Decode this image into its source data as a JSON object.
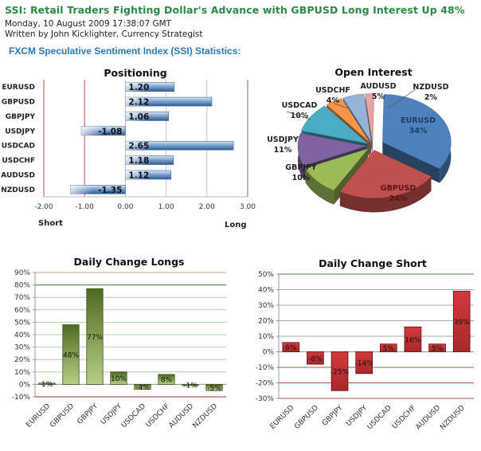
{
  "article": {
    "title": "SSI: Retail Traders Fighting Dollar's Advance with GBPUSD Long Interest Up 48%",
    "date": "Monday, 10 August 2009 17:38:07 GMT",
    "author": "Written by John Kicklighter, Currency Strategist",
    "section_heading": "FXCM Speculative  Sentiment Index (SSI) Statistics:"
  },
  "colors": {
    "title_green": "#2a8a46",
    "heading_blue": "#2a7ab8",
    "bar_blue": "#4f7fb8",
    "bar_green": "#6a8a36",
    "bar_red": "#c8393c",
    "grid_red": "#c0504d",
    "grid_green": "#4a8a3a"
  },
  "chart_data": [
    {
      "type": "bar",
      "orientation": "horizontal",
      "title": "Positioning",
      "categories": [
        "EURUSD",
        "GBPUSD",
        "GBPJPY",
        "USDJPY",
        "USDCAD",
        "USDCHF",
        "AUDUSD",
        "NZDUSD"
      ],
      "values": [
        1.2,
        2.12,
        1.06,
        -1.08,
        2.65,
        1.18,
        1.12,
        -1.35
      ],
      "value_labels": [
        "1.20",
        "2.12",
        "1.06",
        "-1.08",
        "2.65",
        "1.18",
        "1.12",
        "-1.35"
      ],
      "xlim": [
        -2.0,
        3.0
      ],
      "xticks": [
        "-2.00",
        "-1.00",
        "0.00",
        "1.00",
        "2.00",
        "3.00"
      ],
      "xtick_values": [
        -2,
        -1,
        0,
        1,
        2,
        3
      ],
      "annotations": {
        "left": "Short",
        "right": "Long"
      },
      "grid": true
    },
    {
      "type": "pie",
      "title": "Open Interest",
      "three_d": true,
      "slices": [
        {
          "label": "EURUSD",
          "value": 34,
          "pct": "34%",
          "color": "#4f81bd"
        },
        {
          "label": "GBPUSD",
          "value": 24,
          "pct": "24%",
          "color": "#c0504d"
        },
        {
          "label": "GBPJPY",
          "value": 10,
          "pct": "10%",
          "color": "#9bbb59"
        },
        {
          "label": "USDJPY",
          "value": 11,
          "pct": "11%",
          "color": "#8064a2"
        },
        {
          "label": "USDCAD",
          "value": 10,
          "pct": "10%",
          "color": "#4bacc6"
        },
        {
          "label": "USDCHF",
          "value": 4,
          "pct": "4%",
          "color": "#f79646"
        },
        {
          "label": "AUDUSD",
          "value": 5,
          "pct": "5%",
          "color": "#95b3d7"
        },
        {
          "label": "NZDUSD",
          "value": 2,
          "pct": "2%",
          "color": "#e6a5a5"
        }
      ]
    },
    {
      "type": "bar",
      "title": "Daily Change Longs",
      "categories": [
        "EURUSD",
        "GBPUSD",
        "GBPJPY",
        "USDJPY",
        "USDCAD",
        "USDCHF",
        "AUDUSD",
        "NZDUSD"
      ],
      "values": [
        1,
        48,
        77,
        10,
        -4,
        8,
        -1,
        -5
      ],
      "value_labels": [
        "1%",
        "48%",
        "77%",
        "10%",
        "-4%",
        "8%",
        "-1%",
        "-5%"
      ],
      "ylim": [
        -10,
        90
      ],
      "yticks": [
        "-10%",
        "0%",
        "10%",
        "20%",
        "30%",
        "40%",
        "50%",
        "60%",
        "70%",
        "80%",
        "90%"
      ],
      "ytick_values": [
        -10,
        0,
        10,
        20,
        30,
        40,
        50,
        60,
        70,
        80,
        90
      ],
      "grid": true
    },
    {
      "type": "bar",
      "title": "Daily Change Short",
      "categories": [
        "EURUSD",
        "GBPUSD",
        "GBPJPY",
        "USDJPY",
        "USDCAD",
        "USDCHF",
        "AUDUSD",
        "NZDUSD"
      ],
      "values": [
        6,
        -8,
        -25,
        -14,
        5,
        16,
        5,
        39
      ],
      "value_labels": [
        "6%",
        "-8%",
        "-25%",
        "-14%",
        "5%",
        "16%",
        "5%",
        "39%"
      ],
      "ylim": [
        -30,
        50
      ],
      "yticks": [
        "-30%",
        "-20%",
        "-10%",
        "0%",
        "10%",
        "20%",
        "30%",
        "40%",
        "50%"
      ],
      "ytick_values": [
        -30,
        -20,
        -10,
        0,
        10,
        20,
        30,
        40,
        50
      ],
      "grid": true
    }
  ]
}
